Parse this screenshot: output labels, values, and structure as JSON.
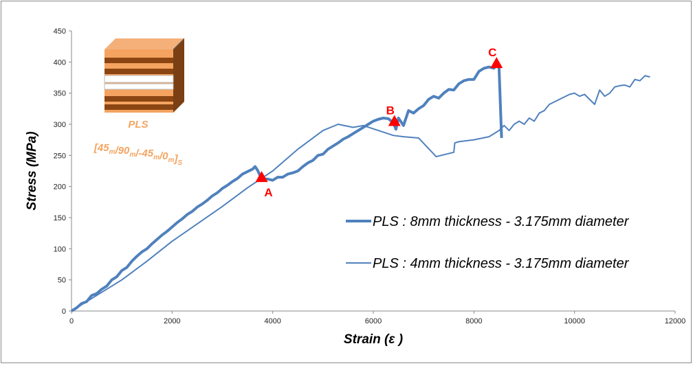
{
  "chart_data": {
    "type": "line",
    "x_label": "Strain (ε )",
    "y_label": "Stress (MPa)",
    "xlim": [
      0,
      12000
    ],
    "ylim": [
      0,
      450
    ],
    "xticks": [
      0,
      2000,
      4000,
      6000,
      8000,
      10000,
      12000
    ],
    "yticks": [
      0,
      50,
      100,
      150,
      200,
      250,
      300,
      350,
      400,
      450
    ],
    "grid": false,
    "inset_label": "PLS",
    "layup": [
      [
        "[45",
        "m"
      ],
      [
        "/90",
        "m"
      ],
      [
        "/-45",
        "m"
      ],
      [
        "/0",
        "m"
      ],
      [
        "]",
        "S"
      ]
    ],
    "annotations": [
      {
        "text": "A",
        "x": 3780,
        "y": 215,
        "color": "#ff0000"
      },
      {
        "text": "B",
        "x": 6420,
        "y": 305,
        "color": "#ff0000"
      },
      {
        "text": "C",
        "x": 8450,
        "y": 398,
        "color": "#ff0000"
      }
    ],
    "series": [
      {
        "name": "PLS : 8mm thickness - 3.175mm diameter",
        "color": "#4f81bd",
        "width": 4,
        "x": [
          0,
          100,
          200,
          300,
          400,
          500,
          600,
          700,
          800,
          900,
          1000,
          1100,
          1200,
          1300,
          1400,
          1500,
          1600,
          1700,
          1800,
          1900,
          2000,
          2100,
          2200,
          2300,
          2400,
          2500,
          2600,
          2700,
          2800,
          2900,
          3000,
          3100,
          3200,
          3300,
          3400,
          3500,
          3600,
          3650,
          3700,
          3780,
          3900,
          4000,
          4100,
          4200,
          4300,
          4400,
          4500,
          4600,
          4700,
          4800,
          4900,
          5000,
          5100,
          5200,
          5300,
          5400,
          5500,
          5600,
          5700,
          5800,
          5900,
          6000,
          6100,
          6200,
          6300,
          6400,
          6450,
          6500,
          6600,
          6700,
          6800,
          6900,
          7000,
          7100,
          7200,
          7300,
          7400,
          7500,
          7600,
          7700,
          7800,
          7900,
          8000,
          8100,
          8200,
          8300,
          8400,
          8450,
          8500,
          8550
        ],
        "values": [
          0,
          5,
          12,
          15,
          25,
          28,
          35,
          40,
          50,
          55,
          65,
          70,
          80,
          88,
          95,
          100,
          108,
          115,
          122,
          128,
          135,
          142,
          148,
          155,
          160,
          167,
          172,
          178,
          185,
          190,
          197,
          202,
          208,
          213,
          220,
          224,
          228,
          232,
          226,
          212,
          212,
          210,
          215,
          215,
          220,
          222,
          225,
          232,
          238,
          242,
          250,
          252,
          260,
          265,
          270,
          276,
          280,
          285,
          290,
          295,
          300,
          305,
          308,
          310,
          309,
          302,
          292,
          310,
          298,
          322,
          318,
          325,
          330,
          340,
          345,
          342,
          350,
          356,
          355,
          365,
          370,
          372,
          372,
          385,
          390,
          392,
          390,
          396,
          390,
          278
        ]
      },
      {
        "name": "PLS : 4mm thickness - 3.175mm diameter",
        "color": "#4f81bd",
        "width": 2,
        "x": [
          0,
          500,
          1000,
          1500,
          2000,
          2500,
          3000,
          3500,
          4000,
          4500,
          5000,
          5300,
          5600,
          5800,
          6100,
          6400,
          6600,
          6900,
          7250,
          7600,
          7620,
          7700,
          8000,
          8300,
          8400,
          8500,
          8600,
          8700,
          8800,
          8900,
          9000,
          9100,
          9200,
          9300,
          9400,
          9500,
          9700,
          9900,
          10000,
          10100,
          10200,
          10300,
          10400,
          10500,
          10600,
          10700,
          10800,
          10900,
          11000,
          11100,
          11200,
          11300,
          11400,
          11500
        ],
        "values": [
          0,
          25,
          50,
          80,
          112,
          140,
          168,
          198,
          225,
          260,
          290,
          300,
          295,
          298,
          290,
          282,
          280,
          278,
          248,
          255,
          270,
          272,
          275,
          280,
          285,
          290,
          298,
          290,
          300,
          305,
          300,
          310,
          305,
          318,
          322,
          332,
          340,
          348,
          350,
          345,
          348,
          340,
          332,
          355,
          345,
          350,
          360,
          362,
          363,
          360,
          372,
          370,
          378,
          376
        ]
      }
    ]
  }
}
